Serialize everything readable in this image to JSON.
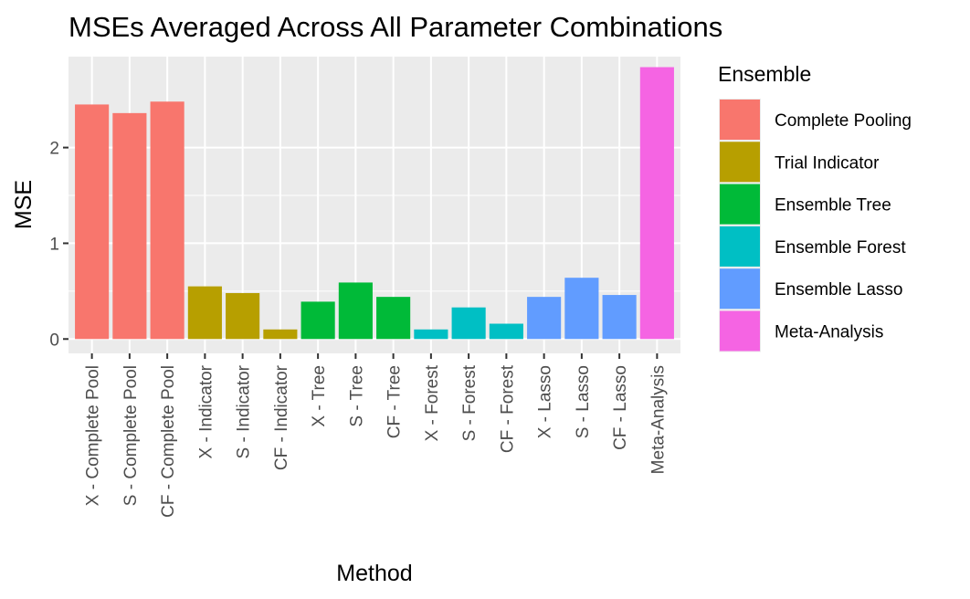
{
  "chart_data": {
    "type": "bar",
    "title": "MSEs Averaged Across All Parameter Combinations",
    "xlabel": "Method",
    "ylabel": "MSE",
    "ylim": [
      -0.15,
      2.95
    ],
    "yticks": [
      0,
      1,
      2
    ],
    "grid": true,
    "legend_position": "right",
    "legend_title": "Ensemble",
    "legend": [
      {
        "name": "Complete Pooling",
        "color": "#F8766D"
      },
      {
        "name": "Trial Indicator",
        "color": "#B79F00"
      },
      {
        "name": "Ensemble Tree",
        "color": "#00BA38"
      },
      {
        "name": "Ensemble Forest",
        "color": "#00BFC4"
      },
      {
        "name": "Ensemble Lasso",
        "color": "#619CFF"
      },
      {
        "name": "Meta-Analysis",
        "color": "#F564E3"
      }
    ],
    "categories": [
      "X - Complete Pool",
      "S - Complete Pool",
      "CF - Complete Pool",
      "X - Indicator",
      "S - Indicator",
      "CF - Indicator",
      "X - Tree",
      "S - Tree",
      "CF - Tree",
      "X - Forest",
      "S - Forest",
      "CF - Forest",
      "X - Lasso",
      "S - Lasso",
      "CF - Lasso",
      "Meta-Analysis"
    ],
    "values": [
      2.45,
      2.36,
      2.48,
      0.55,
      0.48,
      0.1,
      0.39,
      0.59,
      0.44,
      0.1,
      0.33,
      0.16,
      0.44,
      0.64,
      0.46,
      2.84
    ],
    "groups": [
      "Complete Pooling",
      "Complete Pooling",
      "Complete Pooling",
      "Trial Indicator",
      "Trial Indicator",
      "Trial Indicator",
      "Ensemble Tree",
      "Ensemble Tree",
      "Ensemble Tree",
      "Ensemble Forest",
      "Ensemble Forest",
      "Ensemble Forest",
      "Ensemble Lasso",
      "Ensemble Lasso",
      "Ensemble Lasso",
      "Meta-Analysis"
    ]
  }
}
